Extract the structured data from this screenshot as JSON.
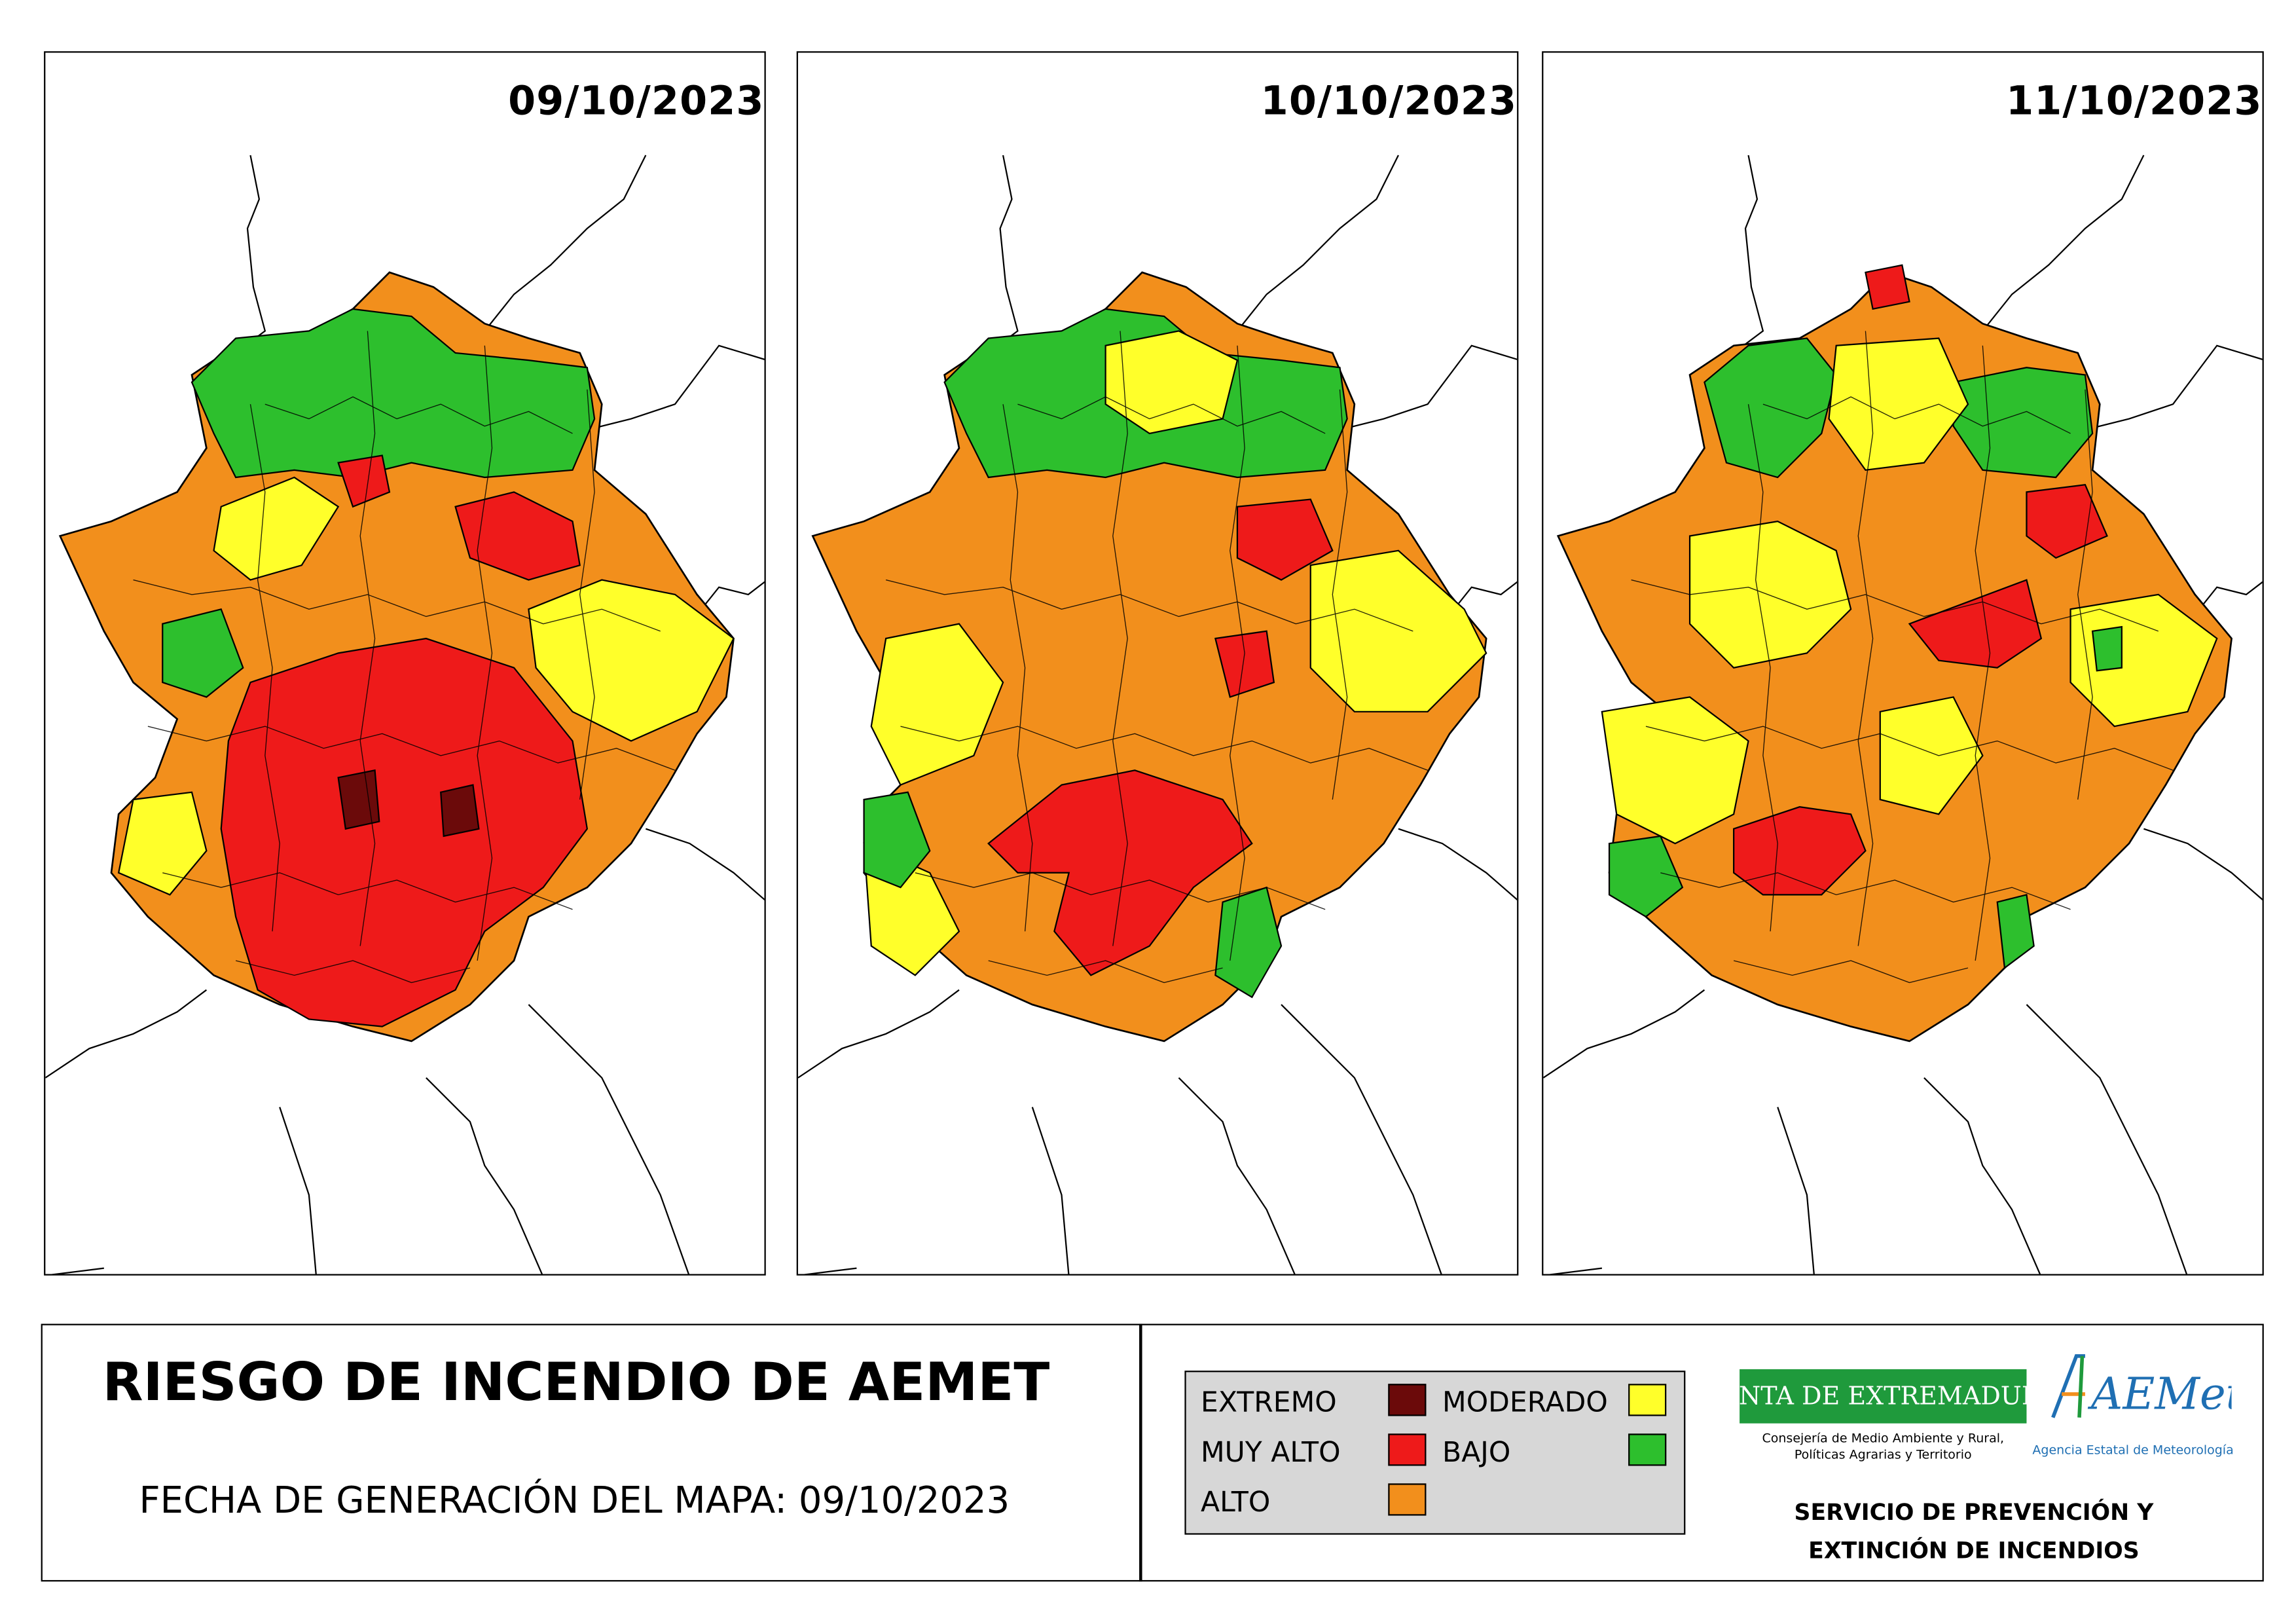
{
  "maps": [
    {
      "date": "09/10/2023"
    },
    {
      "date": "10/10/2023"
    },
    {
      "date": "11/10/2023"
    }
  ],
  "title": "RIESGO DE INCENDIO DE AEMET",
  "generation": "FECHA DE GENERACIÓN DEL MAPA: 09/10/2023",
  "legend": [
    {
      "label": "EXTREMO",
      "color": "#6b0a0a"
    },
    {
      "label": "MUY ALTO",
      "color": "#ee1a1a"
    },
    {
      "label": "ALTO",
      "color": "#f28f1c"
    },
    {
      "label": "MODERADO",
      "color": "#ffff2a"
    },
    {
      "label": "BAJO",
      "color": "#2dbf2d"
    }
  ],
  "logos": {
    "junta": "JUNTA DE EXTREMADURA",
    "junta_sub1": "Consejería de Medio Ambiente y Rural,",
    "junta_sub2": "Políticas Agrarias y Territorio",
    "aemet": "AEMet",
    "aemet_sub": "Agencia Estatal de Meteorología"
  },
  "service": {
    "line1": "SERVICIO DE PREVENCIÓN Y",
    "line2": "EXTINCIÓN DE INCENDIOS"
  }
}
